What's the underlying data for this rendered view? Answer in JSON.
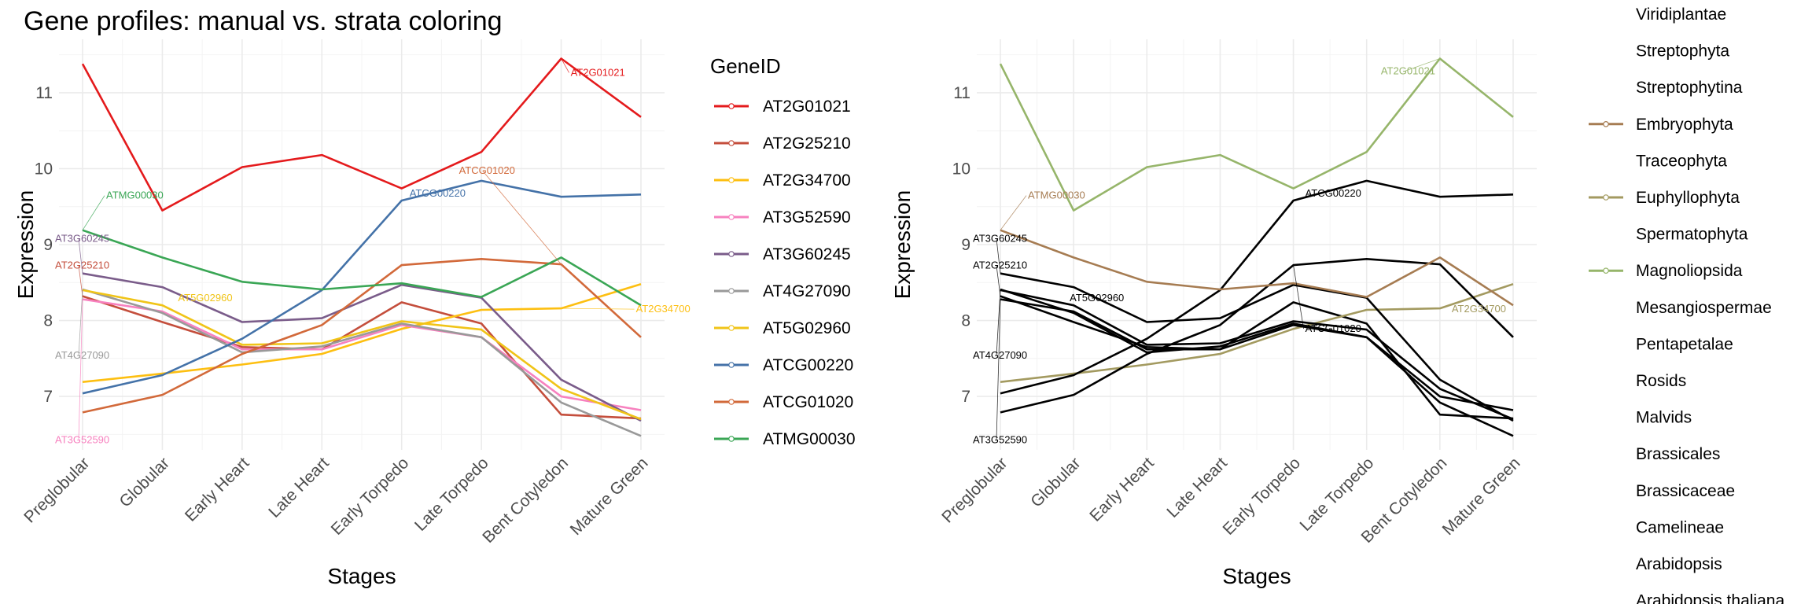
{
  "title": "Gene profiles: manual vs. strata coloring",
  "chart_data": [
    {
      "type": "line",
      "panel": "left",
      "xlabel": "Stages",
      "ylabel": "Expression",
      "ylim": [
        6.4,
        11.6
      ],
      "yticks": [
        7,
        8,
        9,
        10,
        11
      ],
      "categories": [
        "Preglobular",
        "Globular",
        "Early Heart",
        "Late Heart",
        "Early Torpedo",
        "Late Torpedo",
        "Bent Cotyledon",
        "Mature Green"
      ],
      "legend_title": "GeneID",
      "legend_position": "right",
      "series": [
        {
          "name": "AT2G01021",
          "color": "#e41a1c",
          "values": [
            11.38,
            9.45,
            10.02,
            10.18,
            9.74,
            10.22,
            11.45,
            10.68
          ],
          "annotation": {
            "text": "AT2G01021",
            "at": 6,
            "dx": 12,
            "dy": 22
          }
        },
        {
          "name": "AT2G25210",
          "color": "#c44e3c",
          "values": [
            8.32,
            7.98,
            7.65,
            7.62,
            8.24,
            7.96,
            6.76,
            6.71
          ],
          "annotation": {
            "text": "AT2G25210",
            "at": 0,
            "dx": -35,
            "dy": -35
          }
        },
        {
          "name": "AT2G34700",
          "color": "#fdbf11",
          "values": [
            7.19,
            7.3,
            7.42,
            7.56,
            7.89,
            8.14,
            8.16,
            8.48
          ],
          "annotation": {
            "text": "AT2G34700",
            "at": 6,
            "dx": 95,
            "dy": 5
          }
        },
        {
          "name": "AT3G52590",
          "color": "#f781bf",
          "values": [
            8.28,
            8.12,
            7.62,
            7.62,
            7.94,
            7.78,
            7.0,
            6.82
          ],
          "annotation": {
            "text": "AT3G52590",
            "at": 0,
            "dx": -35,
            "dy": 183
          }
        },
        {
          "name": "AT3G60245",
          "color": "#7a5c8a",
          "values": [
            8.62,
            8.44,
            7.98,
            8.03,
            8.47,
            8.3,
            7.22,
            6.68
          ],
          "annotation": {
            "text": "AT3G60245",
            "at": 0,
            "dx": -35,
            "dy": -40
          }
        },
        {
          "name": "AT4G27090",
          "color": "#999999",
          "values": [
            8.41,
            8.1,
            7.58,
            7.66,
            7.96,
            7.78,
            6.92,
            6.48
          ],
          "annotation": {
            "text": "AT4G27090",
            "at": 0,
            "dx": -35,
            "dy": 88
          }
        },
        {
          "name": "AT5G02960",
          "color": "#f0c418",
          "values": [
            8.4,
            8.2,
            7.68,
            7.7,
            7.99,
            7.88,
            7.1,
            6.7
          ],
          "annotation": {
            "text": "AT5G02960",
            "at": 1,
            "dx": 20,
            "dy": -5
          }
        },
        {
          "name": "ATCG00220",
          "color": "#4472a8",
          "values": [
            7.04,
            7.28,
            7.76,
            8.4,
            9.58,
            9.84,
            9.63,
            9.66
          ],
          "annotation": {
            "text": "ATCG00220",
            "at": 4,
            "dx": 10,
            "dy": -5
          }
        },
        {
          "name": "ATCG01020",
          "color": "#d2693a",
          "values": [
            6.79,
            7.02,
            7.56,
            7.94,
            8.73,
            8.81,
            8.74,
            7.78
          ],
          "annotation": {
            "text": "ATCG01020",
            "at": 6,
            "dx": -130,
            "dy": -115
          }
        },
        {
          "name": "ATMG00030",
          "color": "#3aa655",
          "values": [
            9.19,
            8.83,
            8.51,
            8.41,
            8.49,
            8.31,
            8.83,
            8.2
          ],
          "annotation": {
            "text": "ATMG00030",
            "at": 0,
            "dx": 30,
            "dy": -40
          }
        }
      ]
    },
    {
      "type": "line",
      "panel": "right",
      "xlabel": "Stages",
      "ylabel": "Expression",
      "ylim": [
        6.4,
        11.6
      ],
      "yticks": [
        7,
        8,
        9,
        10,
        11
      ],
      "categories": [
        "Preglobular",
        "Globular",
        "Early Heart",
        "Late Heart",
        "Early Torpedo",
        "Late Torpedo",
        "Bent Cotyledon",
        "Mature Green"
      ],
      "legend_position": "right",
      "legend_items": [
        {
          "label": "Viridiplantae",
          "color": null
        },
        {
          "label": "Streptophyta",
          "color": null
        },
        {
          "label": "Streptophytina",
          "color": null
        },
        {
          "label": "Embryophyta",
          "color": "#a67c52"
        },
        {
          "label": "Traceophyta",
          "color": null
        },
        {
          "label": "Euphyllophyta",
          "color": "#a39a60"
        },
        {
          "label": "Spermatophyta",
          "color": null
        },
        {
          "label": "Magnoliopsida",
          "color": "#96b56a"
        },
        {
          "label": "Mesangiospermae",
          "color": null
        },
        {
          "label": "Pentapetalae",
          "color": null
        },
        {
          "label": "Rosids",
          "color": null
        },
        {
          "label": "Malvids",
          "color": null
        },
        {
          "label": "Brassicales",
          "color": null
        },
        {
          "label": "Brassicaceae",
          "color": null
        },
        {
          "label": "Camelineae",
          "color": null
        },
        {
          "label": "Arabidopsis",
          "color": null
        },
        {
          "label": "Arabidopsis thaliana",
          "color": null
        }
      ],
      "series": [
        {
          "name": "AT2G01021",
          "color": "#96b56a",
          "values": [
            11.38,
            9.45,
            10.02,
            10.18,
            9.74,
            10.22,
            11.45,
            10.68
          ],
          "annotation": {
            "text": "AT2G01021",
            "at": 6,
            "dx": -75,
            "dy": 20,
            "color": "#96b56a"
          }
        },
        {
          "name": "AT2G25210",
          "color": "#000000",
          "values": [
            8.32,
            7.98,
            7.65,
            7.62,
            8.24,
            7.96,
            6.76,
            6.71
          ],
          "annotation": {
            "text": "AT2G25210",
            "at": 0,
            "dx": -35,
            "dy": -35,
            "color": "#000000"
          }
        },
        {
          "name": "AT2G34700",
          "color": "#a39a60",
          "values": [
            7.19,
            7.3,
            7.42,
            7.56,
            7.89,
            8.14,
            8.16,
            8.48
          ],
          "annotation": {
            "text": "AT2G34700",
            "at": 6,
            "dx": 15,
            "dy": 5,
            "color": "#a39a60"
          }
        },
        {
          "name": "AT3G52590",
          "color": "#000000",
          "values": [
            8.28,
            8.12,
            7.62,
            7.62,
            7.94,
            7.78,
            7.0,
            6.82
          ],
          "annotation": {
            "text": "AT3G52590",
            "at": 0,
            "dx": -35,
            "dy": 183,
            "color": "#000000"
          }
        },
        {
          "name": "AT3G60245",
          "color": "#000000",
          "values": [
            8.62,
            8.44,
            7.98,
            8.03,
            8.47,
            8.3,
            7.22,
            6.68
          ],
          "annotation": {
            "text": "AT3G60245",
            "at": 0,
            "dx": -35,
            "dy": -40,
            "color": "#000000"
          }
        },
        {
          "name": "AT4G27090",
          "color": "#000000",
          "values": [
            8.41,
            8.1,
            7.58,
            7.66,
            7.96,
            7.78,
            6.92,
            6.48
          ],
          "annotation": {
            "text": "AT4G27090",
            "at": 0,
            "dx": -35,
            "dy": 88,
            "color": "#000000"
          }
        },
        {
          "name": "AT5G02960",
          "color": "#000000",
          "values": [
            8.4,
            8.2,
            7.68,
            7.7,
            7.99,
            7.88,
            7.1,
            6.7
          ],
          "annotation": {
            "text": "AT5G02960",
            "at": 1,
            "dx": -5,
            "dy": -5,
            "color": "#000000"
          }
        },
        {
          "name": "ATCG00220",
          "color": "#000000",
          "values": [
            7.04,
            7.28,
            7.76,
            8.4,
            9.58,
            9.84,
            9.63,
            9.66
          ],
          "annotation": {
            "text": "ATCG00220",
            "at": 4,
            "dx": 15,
            "dy": -5,
            "color": "#000000"
          }
        },
        {
          "name": "ATCG01020",
          "color": "#000000",
          "values": [
            6.79,
            7.02,
            7.56,
            7.94,
            8.73,
            8.81,
            8.74,
            7.78
          ],
          "annotation": {
            "text": "ATCG01020",
            "at": 4,
            "dx": 15,
            "dy": 85,
            "color": "#000000"
          }
        },
        {
          "name": "ATMG00030",
          "color": "#a67c52",
          "values": [
            9.19,
            8.83,
            8.51,
            8.41,
            8.49,
            8.31,
            8.83,
            8.2
          ],
          "annotation": {
            "text": "ATMG00030",
            "at": 0,
            "dx": 35,
            "dy": -40,
            "color": "#a67c52"
          }
        }
      ]
    }
  ]
}
